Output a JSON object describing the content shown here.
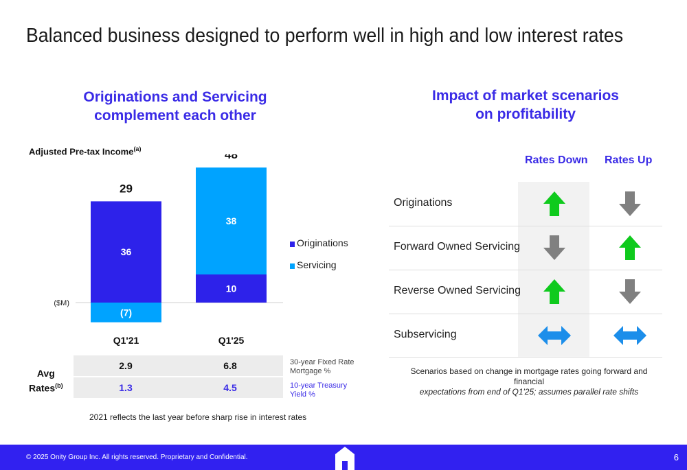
{
  "title": "Balanced business designed to perform well in high and low interest rates",
  "left": {
    "subtitle_line1": "Originations and Servicing",
    "subtitle_line2": "complement each other",
    "ylabel": "Adjusted Pre-tax Income",
    "ylabel_sup": "(a)",
    "unit_label": "($M)"
  },
  "chart_data": {
    "type": "bar",
    "stacked": true,
    "categories": [
      "Q1'21",
      "Q1'25"
    ],
    "series": [
      {
        "name": "Originations",
        "values": [
          36,
          10
        ],
        "color": "#2d22ea"
      },
      {
        "name": "Servicing",
        "values": [
          -7,
          38
        ],
        "color": "#00a3ff"
      }
    ],
    "value_labels": [
      [
        "36",
        "10"
      ],
      [
        "(7)",
        "38"
      ]
    ],
    "totals": [
      29,
      48
    ],
    "ylabel": "Adjusted Pre-tax Income",
    "legend": "right",
    "grid": false
  },
  "rates": {
    "label_line1": "Avg",
    "label_line2": "Rates",
    "label_sup": "(b)",
    "mortgage": [
      "2.9",
      "6.8"
    ],
    "treasury": [
      "1.3",
      "4.5"
    ],
    "mortgage_label_1": "30-year Fixed Rate",
    "mortgage_label_2": "Mortgage %",
    "treasury_label_1": "10-year Treasury",
    "treasury_label_2": "Yield %",
    "treasury_color": "#3a2be6",
    "note": "2021 reflects the last year before sharp rise in interest rates"
  },
  "right": {
    "subtitle_line1": "Impact of market scenarios",
    "subtitle_line2": "on profitability",
    "col_down": "Rates Down",
    "col_up": "Rates Up",
    "rows": [
      {
        "label": "Originations",
        "down": "up-arrow-green",
        "up": "down-arrow-gray"
      },
      {
        "label": "Forward Owned Servicing",
        "down": "down-arrow-gray",
        "up": "up-arrow-green"
      },
      {
        "label": "Reverse Owned Servicing",
        "down": "up-arrow-green",
        "up": "down-arrow-gray"
      },
      {
        "label": "Subservicing",
        "down": "two-way-arrow-blue",
        "up": "two-way-arrow-blue"
      }
    ],
    "note_line1": "Scenarios based on change in mortgage rates going forward and financial",
    "note_line2": "expectations from end of Q1'25; assumes parallel rate shifts"
  },
  "colors": {
    "brand": "#3121f0",
    "accent": "#3a2be6",
    "green": "#0fca1d",
    "gray": "#808080",
    "blue": "#1c8eea"
  },
  "footer": {
    "copyright": "© 2025 Onity Group Inc. All rights reserved. Proprietary and Confidential.",
    "page": "6"
  }
}
